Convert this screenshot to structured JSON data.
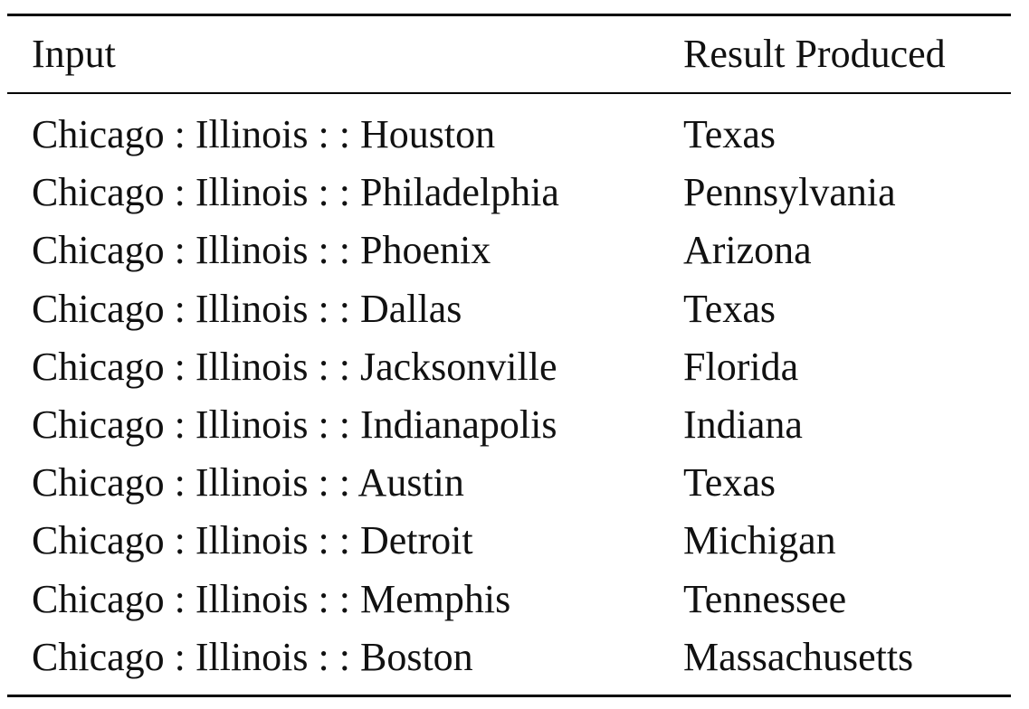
{
  "table": {
    "header": [
      "Input",
      "Result Produced"
    ],
    "rows": [
      [
        "Chicago : Illinois : : Houston",
        "Texas"
      ],
      [
        "Chicago : Illinois : : Philadelphia",
        "Pennsylvania"
      ],
      [
        "Chicago : Illinois : : Phoenix",
        "Arizona"
      ],
      [
        "Chicago : Illinois : : Dallas",
        "Texas"
      ],
      [
        "Chicago : Illinois : : Jacksonville",
        "Florida"
      ],
      [
        "Chicago : Illinois : : Indianapolis",
        "Indiana"
      ],
      [
        "Chicago : Illinois : : Austin",
        "Texas"
      ],
      [
        "Chicago : Illinois : : Detroit",
        "Michigan"
      ],
      [
        "Chicago : Illinois : : Memphis",
        "Tennessee"
      ],
      [
        "Chicago : Illinois : : Boston",
        "Massachusetts"
      ]
    ]
  }
}
